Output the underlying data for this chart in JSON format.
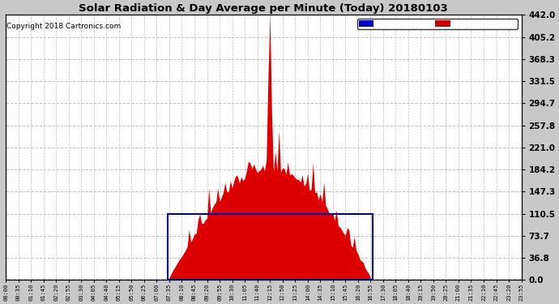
{
  "title": "Solar Radiation & Day Average per Minute (Today) 20180103",
  "copyright": "Copyright 2018 Cartronics.com",
  "ymin": 0.0,
  "ymax": 442.0,
  "yticks": [
    0.0,
    36.8,
    73.7,
    110.5,
    147.3,
    184.2,
    221.0,
    257.8,
    294.7,
    331.5,
    368.3,
    405.2,
    442.0
  ],
  "fig_bg_color": "#c8c8c8",
  "plot_bg_color": "#ffffff",
  "radiation_color": "#dd0000",
  "median_color": "#0000cc",
  "grid_color": "#c0c0c0",
  "box_color": "#0000aa",
  "median_value": 110.5,
  "sunrise_idx": 90,
  "sunset_idx": 204,
  "legend_median_bg": "#0000cc",
  "legend_radiation_bg": "#cc0000",
  "title_fontsize": 9.5,
  "copyright_fontsize": 6.5,
  "ytick_fontsize": 7.5,
  "xtick_fontsize": 5.0
}
